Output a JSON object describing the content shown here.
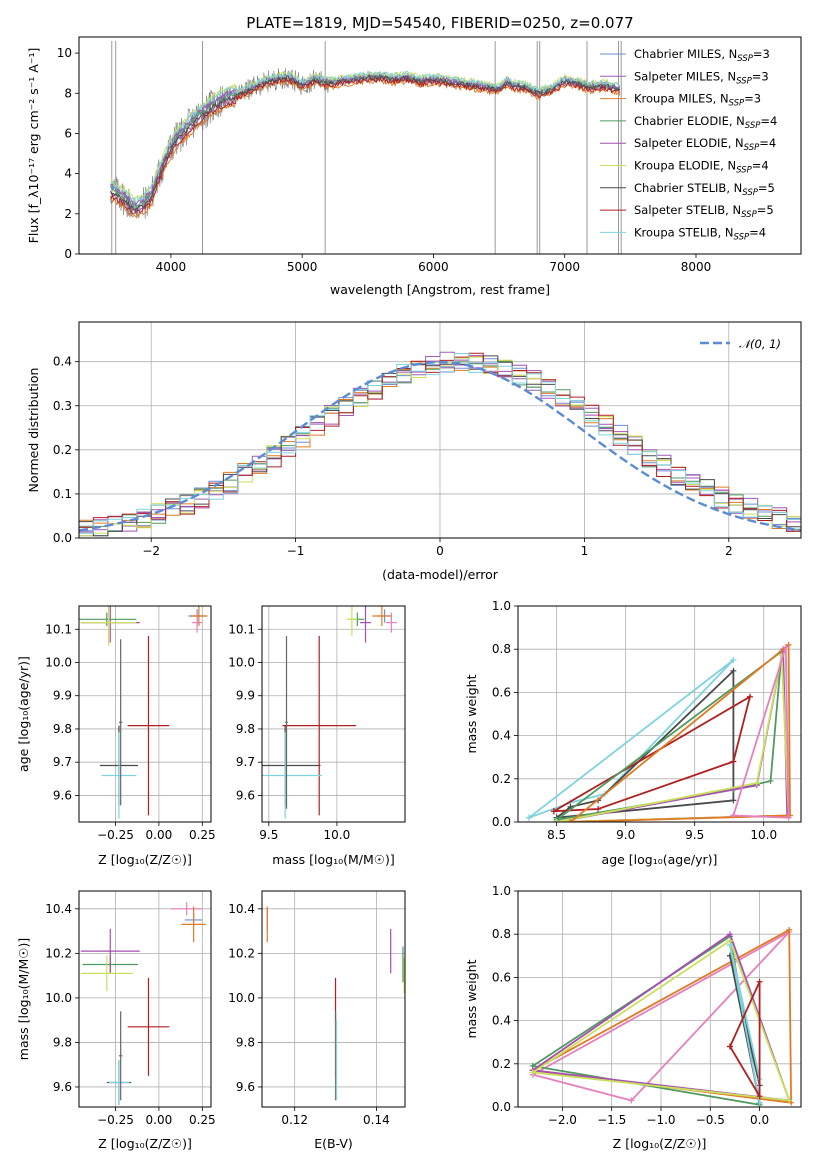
{
  "chart_data": [
    {
      "id": "spectrum",
      "type": "line",
      "title": "PLATE=1819, MJD=54540, FIBERID=0250, z=0.077",
      "xlabel": "wavelength [Angstrom, rest frame]",
      "ylabel": "Flux [f_λ10⁻¹⁷ erg cm⁻² s⁻¹ A⁻¹]",
      "xlim": [
        3300,
        8800
      ],
      "ylim": [
        0,
        10.8
      ],
      "xticks": [
        "4000",
        "5000",
        "6000",
        "7000",
        "8000"
      ],
      "yticks": [
        "0",
        "2",
        "4",
        "6",
        "8",
        "10"
      ],
      "legend_placement": "right",
      "continuum_anchors": {
        "x": [
          3540,
          3640,
          3720,
          3780,
          3850,
          3900,
          3950,
          4000,
          4050,
          4100,
          4200,
          4300,
          4400,
          4500,
          4600,
          4700,
          4800,
          4900,
          5000,
          5100,
          5200,
          5300,
          5400,
          5500,
          5600,
          5700,
          5800,
          5900,
          6000,
          6100,
          6200,
          6300,
          6400,
          6500,
          6560,
          6600,
          6700,
          6800,
          6900,
          7000,
          7100,
          7200,
          7300,
          7420
        ],
        "y": [
          3.2,
          2.8,
          2.3,
          2.4,
          2.9,
          3.8,
          4.6,
          5.3,
          5.8,
          6.1,
          6.8,
          7.3,
          7.7,
          7.9,
          8.2,
          8.5,
          8.7,
          8.8,
          8.4,
          8.7,
          8.5,
          8.6,
          8.7,
          8.8,
          8.8,
          8.7,
          8.8,
          8.6,
          8.7,
          8.6,
          8.5,
          8.4,
          8.3,
          8.2,
          8.6,
          8.4,
          8.3,
          8.0,
          8.2,
          8.6,
          8.5,
          8.3,
          8.4,
          8.2
        ]
      },
      "observed_color": "#808080",
      "series": [
        {
          "name": "Chabrier MILES, N_SSP=3",
          "label_main": "Chabrier MILES, N",
          "label_sub": "SSP",
          "label_end": "=3",
          "color": "#6f8fd6",
          "offset": 0.1
        },
        {
          "name": "Salpeter MILES, N_SSP=3",
          "label_main": "Salpeter MILES, N",
          "label_sub": "SSP",
          "label_end": "=3",
          "color": "#9b5fb5",
          "offset": -0.1
        },
        {
          "name": "Kroupa MILES, N_SSP=3",
          "label_main": "Kroupa MILES, N",
          "label_sub": "SSP",
          "label_end": "=3",
          "color": "#e07b24",
          "offset": -0.3
        },
        {
          "name": "Chabrier ELODIE, N_SSP=4",
          "label_main": "Chabrier ELODIE, N",
          "label_sub": "SSP",
          "label_end": "=4",
          "color": "#4f9a60",
          "offset": 0.05
        },
        {
          "name": "Salpeter ELODIE, N_SSP=4",
          "label_main": "Salpeter ELODIE, N",
          "label_sub": "SSP",
          "label_end": "=4",
          "color": "#a64fb0",
          "offset": 0.15
        },
        {
          "name": "Kroupa ELODIE, N_SSP=4",
          "label_main": "Kroupa ELODIE, N",
          "label_sub": "SSP",
          "label_end": "=4",
          "color": "#c9e05a",
          "offset": 0.3
        },
        {
          "name": "Chabrier STELIB, N_SSP=5",
          "label_main": "Chabrier STELIB, N",
          "label_sub": "SSP",
          "label_end": "=5",
          "color": "#4a4a4a",
          "offset": -0.05
        },
        {
          "name": "Salpeter STELIB, N_SSP=5",
          "label_main": "Salpeter STELIB, N",
          "label_sub": "SSP",
          "label_end": "=5",
          "color": "#b02020",
          "offset": -0.2
        },
        {
          "name": "Kroupa STELIB, N_SSP=4",
          "label_main": "Kroupa STELIB, N",
          "label_sub": "SSP",
          "label_end": "=4",
          "color": "#7fd3df",
          "offset": 0.25
        }
      ],
      "spikes": [
        3550,
        3580,
        4240,
        5175,
        6470,
        6790,
        6810,
        7170,
        7410,
        7430
      ]
    },
    {
      "id": "residual-hist",
      "type": "histogram",
      "xlabel": "(data-model)/error",
      "ylabel": "Normed distribution",
      "xlim": [
        -2.5,
        2.5
      ],
      "ylim": [
        0,
        0.49
      ],
      "xticks": [
        "−2",
        "−1",
        "0",
        "1",
        "2"
      ],
      "yticks": [
        "0.0",
        "0.1",
        "0.2",
        "0.3",
        "0.4"
      ],
      "legend_label": "𝒩(0, 1)",
      "legend_placement": "top-right",
      "gauss_color": "#5b8bd6",
      "bin_edges_start": -2.5,
      "bin_width": 0.1,
      "base_values": [
        0.02,
        0.03,
        0.02,
        0.03,
        0.03,
        0.04,
        0.04,
        0.05,
        0.06,
        0.07,
        0.11,
        0.15,
        0.12,
        0.14,
        0.18,
        0.18,
        0.19,
        0.21,
        0.27,
        0.28,
        0.29,
        0.31,
        0.32,
        0.34,
        0.35,
        0.37,
        0.38,
        0.39,
        0.4,
        0.39,
        0.39,
        0.41,
        0.42,
        0.4,
        0.4,
        0.38,
        0.36,
        0.34,
        0.33,
        0.3,
        0.29,
        0.3,
        0.28,
        0.27,
        0.25,
        0.22,
        0.2,
        0.17,
        0.15,
        0.16,
        0.12,
        0.13,
        0.12,
        0.08,
        0.07,
        0.06,
        0.05,
        0.05,
        0.04,
        0.04,
        0.03,
        0.03,
        0.03,
        0.02,
        0.03,
        0.03,
        0.02,
        0.02,
        0.02,
        0.02,
        0.02,
        0.02,
        0.02,
        0.02,
        0.02,
        0.02,
        0.02,
        0.02,
        0.02,
        0.02,
        0.02,
        0.02
      ]
    },
    {
      "id": "age-vs-Z",
      "type": "errorbar",
      "xlabel": "Z [log₁₀(Z/Z☉)]",
      "ylabel": "age  [log₁₀(age/yr)]",
      "xlim": [
        -0.46,
        0.3
      ],
      "ylim": [
        9.52,
        10.17
      ],
      "xticks": [
        -0.25,
        0.0,
        0.25
      ],
      "xtick_labels": [
        "−0.25",
        "0.00",
        "0.25"
      ],
      "yticks": [
        9.6,
        9.7,
        9.8,
        9.9,
        10.0,
        10.1
      ],
      "ytick_labels": [
        "9.6",
        "9.7",
        "9.8",
        "9.9",
        "10.0",
        "10.1"
      ],
      "points": [
        {
          "x": 0.22,
          "y": 10.14,
          "xerr": 0.05,
          "yerr": 0.02,
          "c": "#6f8fd6"
        },
        {
          "x": 0.22,
          "y": 10.12,
          "xerr": 0.03,
          "yerr": 0.03,
          "c": "#e77fbd"
        },
        {
          "x": 0.23,
          "y": 10.14,
          "xerr": 0.05,
          "yerr": 0.03,
          "c": "#e07b24"
        },
        {
          "x": -0.3,
          "y": 10.13,
          "xerr": 0.17,
          "yerr": 0.02,
          "c": "#4f9a60"
        },
        {
          "x": -0.28,
          "y": 10.12,
          "xerr": 0.17,
          "yerr": 0.06,
          "c": "#a64fb0"
        },
        {
          "x": -0.29,
          "y": 10.12,
          "xerr": 0.16,
          "yerr": 0.07,
          "c": "#c9e05a"
        },
        {
          "x": -0.23,
          "y": 9.69,
          "xerr": 0.11,
          "yerr": 0.12,
          "c": "#4a4a4a"
        },
        {
          "x": -0.06,
          "y": 9.81,
          "xerr": 0.12,
          "yerr": 0.27,
          "c": "#b02020"
        },
        {
          "x": -0.23,
          "y": 9.66,
          "xerr": 0.1,
          "yerr": 0.13,
          "c": "#7fd3df"
        },
        {
          "x": -0.22,
          "y": 9.82,
          "xerr": 0.01,
          "yerr": 0.25,
          "c": "#666666"
        }
      ]
    },
    {
      "id": "age-vs-mass",
      "type": "errorbar",
      "xlabel": "mass [log₁₀(M/M☉)]",
      "xlim": [
        9.45,
        10.5
      ],
      "ylim": [
        9.52,
        10.17
      ],
      "xticks": [
        9.5,
        10.0
      ],
      "xtick_labels": [
        "9.5",
        "10.0"
      ],
      "yticks": [
        9.6,
        9.7,
        9.8,
        9.9,
        10.0,
        10.1
      ],
      "ytick_labels": [
        "9.6",
        "9.7",
        "9.8",
        "9.9",
        "10.0",
        "10.1"
      ],
      "points": [
        {
          "x": 10.35,
          "y": 10.14,
          "xerr": 0.05,
          "yerr": 0.02,
          "c": "#6f8fd6"
        },
        {
          "x": 10.4,
          "y": 10.12,
          "xerr": 0.04,
          "yerr": 0.03,
          "c": "#e77fbd"
        },
        {
          "x": 10.33,
          "y": 10.14,
          "xerr": 0.07,
          "yerr": 0.03,
          "c": "#e07b24"
        },
        {
          "x": 10.15,
          "y": 10.13,
          "xerr": 0.05,
          "yerr": 0.02,
          "c": "#4f9a60"
        },
        {
          "x": 10.21,
          "y": 10.12,
          "xerr": 0.04,
          "yerr": 0.06,
          "c": "#a64fb0"
        },
        {
          "x": 10.11,
          "y": 10.13,
          "xerr": 0.04,
          "yerr": 0.05,
          "c": "#c9e05a"
        },
        {
          "x": 9.62,
          "y": 9.69,
          "xerr": 0.26,
          "yerr": 0.12,
          "c": "#4a4a4a"
        },
        {
          "x": 9.87,
          "y": 9.81,
          "xerr": 0.27,
          "yerr": 0.27,
          "c": "#b02020"
        },
        {
          "x": 9.62,
          "y": 9.66,
          "xerr": 0.27,
          "yerr": 0.13,
          "c": "#7fd3df"
        },
        {
          "x": 9.63,
          "y": 9.82,
          "xerr": 0.01,
          "yerr": 0.26,
          "c": "#666666"
        }
      ]
    },
    {
      "id": "weight-vs-age",
      "type": "line",
      "xlabel": "age  [log₁₀(age/yr)]",
      "ylabel": "mass weight",
      "xlim": [
        8.22,
        10.27
      ],
      "ylim": [
        0,
        1.0
      ],
      "xticks": [
        8.5,
        9.0,
        9.5,
        10.0
      ],
      "xtick_labels": [
        "8.5",
        "9.0",
        "9.5",
        "10.0"
      ],
      "yticks": [
        0.0,
        0.2,
        0.4,
        0.6,
        0.8,
        1.0
      ],
      "ytick_labels": [
        "0.0",
        "0.2",
        "0.4",
        "0.6",
        "0.8",
        "1.0"
      ],
      "series": [
        {
          "c": "#7fd3df",
          "x": [
            8.3,
            8.6,
            8.85,
            9.78,
            8.3
          ],
          "y": [
            0.02,
            0.09,
            0.13,
            0.75,
            0.02
          ]
        },
        {
          "c": "#4a4a4a",
          "x": [
            8.5,
            8.6,
            8.8,
            9.78,
            9.78,
            8.5
          ],
          "y": [
            0.02,
            0.07,
            0.1,
            0.7,
            0.1,
            0.02
          ]
        },
        {
          "c": "#b02020",
          "x": [
            8.48,
            8.8,
            9.78,
            9.9,
            8.48
          ],
          "y": [
            0.05,
            0.06,
            0.28,
            0.58,
            0.05
          ]
        },
        {
          "c": "#4f9a60",
          "x": [
            8.5,
            9.78,
            10.05,
            10.13,
            8.5
          ],
          "y": [
            0.01,
            0.15,
            0.19,
            0.79,
            0.01
          ]
        },
        {
          "c": "#a64fb0",
          "x": [
            8.5,
            9.95,
            10.14,
            10.17,
            8.5
          ],
          "y": [
            0.0,
            0.17,
            0.8,
            0.03,
            0.0
          ]
        },
        {
          "c": "#c9e05a",
          "x": [
            8.5,
            9.95,
            10.13,
            10.18,
            8.5
          ],
          "y": [
            0.0,
            0.18,
            0.77,
            0.03,
            0.0
          ]
        },
        {
          "c": "#e07b24",
          "x": [
            8.6,
            10.18,
            10.19,
            8.6
          ],
          "y": [
            0.0,
            0.82,
            0.03,
            0.0
          ]
        },
        {
          "c": "#e77fbd",
          "x": [
            9.78,
            10.16,
            10.18,
            9.78
          ],
          "y": [
            0.03,
            0.81,
            0.02,
            0.03
          ]
        }
      ]
    },
    {
      "id": "mass-vs-Z",
      "type": "errorbar",
      "xlabel": "Z [log₁₀(Z/Z☉)]",
      "ylabel": "mass [log₁₀(M/M☉)]",
      "xlim": [
        -0.46,
        0.3
      ],
      "ylim": [
        9.51,
        10.48
      ],
      "xticks": [
        -0.25,
        0.0,
        0.25
      ],
      "xtick_labels": [
        "−0.25",
        "0.00",
        "0.25"
      ],
      "yticks": [
        9.6,
        9.8,
        10.0,
        10.2,
        10.4
      ],
      "ytick_labels": [
        "9.6",
        "9.8",
        "10.0",
        "10.2",
        "10.4"
      ],
      "points": [
        {
          "x": 0.2,
          "y": 10.35,
          "xerr": 0.05,
          "yerr": 0.03,
          "c": "#6f8fd6"
        },
        {
          "x": 0.16,
          "y": 10.4,
          "xerr": 0.09,
          "yerr": 0.03,
          "c": "#e77fbd"
        },
        {
          "x": 0.2,
          "y": 10.33,
          "xerr": 0.07,
          "yerr": 0.08,
          "c": "#e07b24"
        },
        {
          "x": -0.28,
          "y": 10.15,
          "xerr": 0.16,
          "yerr": 0.04,
          "c": "#4f9a60"
        },
        {
          "x": -0.28,
          "y": 10.21,
          "xerr": 0.17,
          "yerr": 0.1,
          "c": "#a64fb0"
        },
        {
          "x": -0.3,
          "y": 10.11,
          "xerr": 0.15,
          "yerr": 0.08,
          "c": "#c9e05a"
        },
        {
          "x": -0.23,
          "y": 9.62,
          "xerr": 0.07,
          "yerr": 0.1,
          "c": "#4a4a4a"
        },
        {
          "x": -0.06,
          "y": 9.87,
          "xerr": 0.12,
          "yerr": 0.22,
          "c": "#b02020"
        },
        {
          "x": -0.23,
          "y": 9.62,
          "xerr": 0.06,
          "yerr": 0.1,
          "c": "#7fd3df"
        },
        {
          "x": -0.22,
          "y": 9.74,
          "xerr": 0.01,
          "yerr": 0.2,
          "c": "#666666"
        }
      ]
    },
    {
      "id": "mass-vs-ebv",
      "type": "errorbar",
      "xlabel": "E(B-V)",
      "xlim": [
        0.112,
        0.147
      ],
      "ylim": [
        9.51,
        10.48
      ],
      "xticks": [
        0.12,
        0.14
      ],
      "xtick_labels": [
        "0.12",
        "0.14"
      ],
      "yticks": [
        9.6,
        9.8,
        10.0,
        10.2,
        10.4
      ],
      "ytick_labels": [
        "9.6",
        "9.8",
        "10.0",
        "10.2",
        "10.4"
      ],
      "points": [
        {
          "x": 0.1133,
          "y": 10.35,
          "xerr": 0.0,
          "yerr": 0.05,
          "c": "#e77fbd"
        },
        {
          "x": 0.1133,
          "y": 10.33,
          "xerr": 0.0,
          "yerr": 0.08,
          "c": "#e07b24"
        },
        {
          "x": 0.1435,
          "y": 10.21,
          "xerr": 0.0,
          "yerr": 0.1,
          "c": "#a64fb0"
        },
        {
          "x": 0.1465,
          "y": 10.15,
          "xerr": 0.0,
          "yerr": 0.08,
          "c": "#4f9a60"
        },
        {
          "x": 0.1468,
          "y": 10.1,
          "xerr": 0.0,
          "yerr": 0.08,
          "c": "#c9e05a"
        },
        {
          "x": 0.13,
          "y": 9.87,
          "xerr": 0.0,
          "yerr": 0.22,
          "c": "#b02020"
        },
        {
          "x": 0.13,
          "y": 9.74,
          "xerr": 0.0,
          "yerr": 0.2,
          "c": "#666666"
        },
        {
          "x": 0.1302,
          "y": 9.72,
          "xerr": 0.0,
          "yerr": 0.18,
          "c": "#7fd3df"
        }
      ]
    },
    {
      "id": "weight-vs-Z",
      "type": "line",
      "xlabel": "Z [log₁₀(Z/Z☉)]",
      "ylabel": "mass weight",
      "xlim": [
        -2.45,
        0.42
      ],
      "ylim": [
        0,
        1.0
      ],
      "xticks": [
        -2.0,
        -1.5,
        -1.0,
        -0.5,
        0.0
      ],
      "xtick_labels": [
        "−2.0",
        "−1.5",
        "−1.0",
        "−0.5",
        "0.0"
      ],
      "yticks": [
        0.0,
        0.2,
        0.4,
        0.6,
        0.8,
        1.0
      ],
      "ytick_labels": [
        "0.0",
        "0.2",
        "0.4",
        "0.6",
        "0.8",
        "1.0"
      ],
      "series": [
        {
          "c": "#e77fbd",
          "x": [
            -2.3,
            -1.3,
            0.3,
            -2.3
          ],
          "y": [
            0.15,
            0.03,
            0.81,
            0.15
          ]
        },
        {
          "c": "#e07b24",
          "x": [
            -2.3,
            0.3,
            0.32,
            -2.3
          ],
          "y": [
            0.17,
            0.82,
            0.02,
            0.17
          ]
        },
        {
          "c": "#4f9a60",
          "x": [
            -2.3,
            -0.3,
            0.0,
            -2.3
          ],
          "y": [
            0.19,
            0.79,
            0.01,
            0.19
          ]
        },
        {
          "c": "#a64fb0",
          "x": [
            -2.3,
            -0.3,
            0.3,
            -2.3
          ],
          "y": [
            0.17,
            0.8,
            0.03,
            0.17
          ]
        },
        {
          "c": "#c9e05a",
          "x": [
            -2.3,
            -0.3,
            0.3,
            -2.3
          ],
          "y": [
            0.16,
            0.77,
            0.03,
            0.16
          ]
        },
        {
          "c": "#4a4a4a",
          "x": [
            -0.3,
            0.0,
            0.0,
            -0.3
          ],
          "y": [
            0.7,
            0.1,
            0.02,
            0.7
          ]
        },
        {
          "c": "#7fd3df",
          "x": [
            -0.3,
            0.0,
            0.0,
            -0.3
          ],
          "y": [
            0.75,
            0.13,
            0.02,
            0.75
          ]
        },
        {
          "c": "#b02020",
          "x": [
            -0.3,
            0.0,
            0.0,
            -0.3
          ],
          "y": [
            0.28,
            0.05,
            0.58,
            0.28
          ]
        }
      ]
    }
  ]
}
